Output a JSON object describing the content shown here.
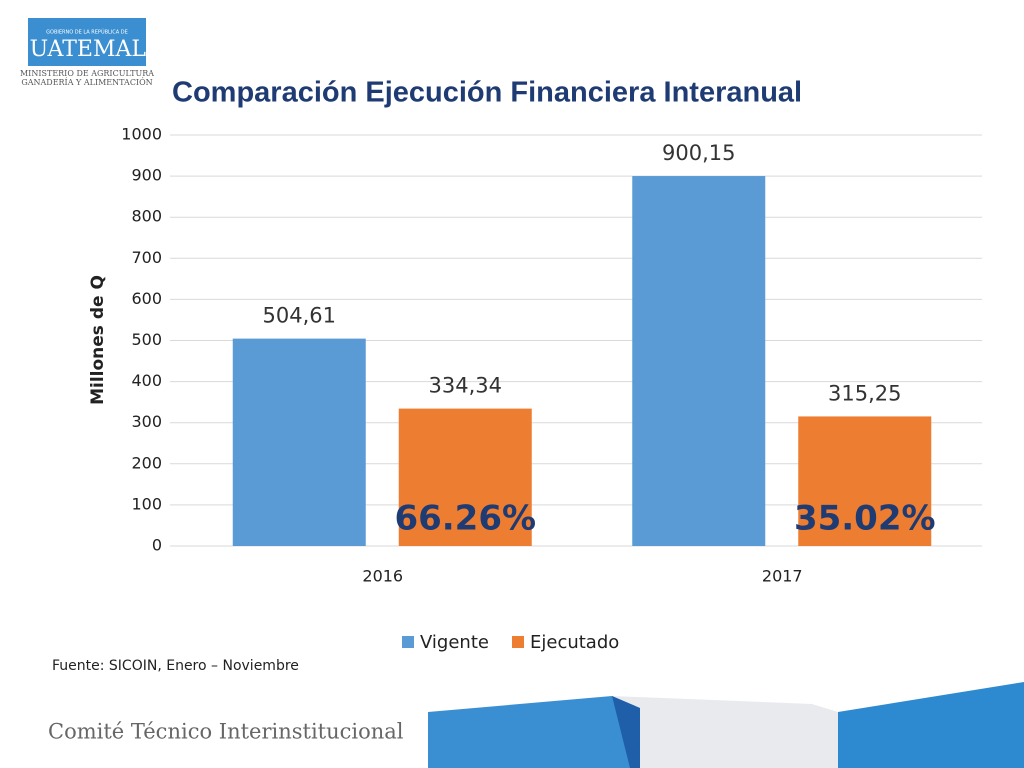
{
  "logo": {
    "top": "GOBIERNO DE LA REPÚBLICA DE",
    "name": "GUATEMALA",
    "line1": "MINISTERIO DE AGRICULTURA",
    "line2": "GANADERÍA Y ALIMENTACIÓN"
  },
  "chart_data": {
    "type": "bar",
    "title": "Comparación Ejecución Financiera Interanual",
    "y_label": "Millones de Q",
    "categories": [
      "2016",
      "2017"
    ],
    "series": [
      {
        "name": "Vigente",
        "color": "#5b9bd5",
        "values": [
          504.61,
          900.15
        ],
        "value_labels": [
          "504,61",
          "900,15"
        ]
      },
      {
        "name": "Ejecutado",
        "color": "#ed7d31",
        "values": [
          334.34,
          315.25
        ],
        "value_labels": [
          "334,34",
          "315,25"
        ]
      }
    ],
    "annotations": [
      "66.26%",
      "35.02%"
    ],
    "ylim": [
      0,
      1000
    ],
    "yticks": [
      0,
      100,
      200,
      300,
      400,
      500,
      600,
      700,
      800,
      900,
      1000
    ],
    "grid": true,
    "legend": "bottom"
  },
  "source": "Fuente: SICOIN, Enero – Noviembre",
  "footer": "Comité Técnico Interinstitucional"
}
